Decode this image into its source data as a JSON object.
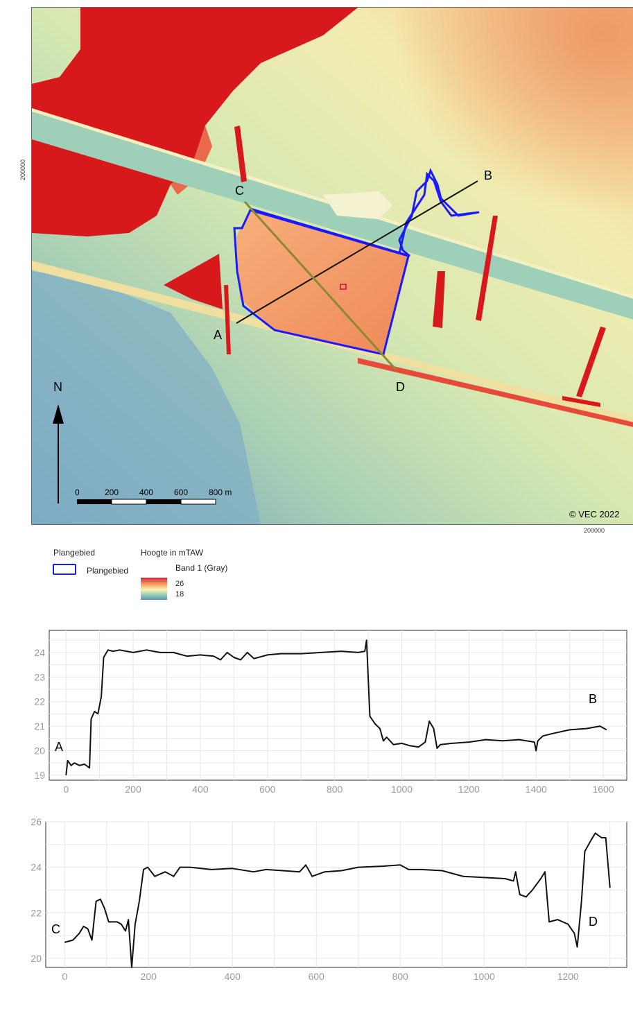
{
  "map": {
    "profile_labels": {
      "a": "A",
      "b": "B",
      "c": "C",
      "d": "D"
    },
    "north_label": "N",
    "scale_labels": [
      "0",
      "200",
      "400",
      "600",
      "800 m"
    ],
    "copyright": "© VEC 2022",
    "coord_y": "200000",
    "coord_x": "200000",
    "colors": {
      "study_area_outline": "#1a1aff",
      "profile_ab": "#111111",
      "profile_cd": "#8a8a30",
      "high": "#d7191c",
      "low": "#5e8fc2"
    }
  },
  "legend": {
    "study_area_title": "Plangebied",
    "study_area_item": "Plangebied",
    "height_title": "Hoogte in mTAW",
    "band_label": "Band 1 (Gray)",
    "max_value": "26",
    "min_value": "18"
  },
  "chart_data": [
    {
      "type": "line",
      "ylim": [
        18.8,
        24.9
      ],
      "xlim": [
        -50,
        1670
      ],
      "yticks": [
        19,
        20,
        21,
        22,
        23,
        24
      ],
      "xticks": [
        0,
        200,
        400,
        600,
        800,
        1000,
        1200,
        1400,
        1600
      ],
      "start_label": "A",
      "end_label": "B",
      "grid": true,
      "points": [
        [
          0,
          19.0
        ],
        [
          5,
          19.6
        ],
        [
          15,
          19.4
        ],
        [
          25,
          19.5
        ],
        [
          40,
          19.4
        ],
        [
          55,
          19.45
        ],
        [
          70,
          19.3
        ],
        [
          75,
          21.3
        ],
        [
          85,
          21.6
        ],
        [
          95,
          21.5
        ],
        [
          105,
          22.2
        ],
        [
          112,
          23.8
        ],
        [
          125,
          24.1
        ],
        [
          140,
          24.05
        ],
        [
          160,
          24.1
        ],
        [
          200,
          24.0
        ],
        [
          240,
          24.1
        ],
        [
          280,
          24.0
        ],
        [
          320,
          24.0
        ],
        [
          360,
          23.85
        ],
        [
          400,
          23.9
        ],
        [
          440,
          23.85
        ],
        [
          460,
          23.7
        ],
        [
          480,
          24.0
        ],
        [
          500,
          23.8
        ],
        [
          520,
          23.7
        ],
        [
          540,
          24.0
        ],
        [
          560,
          23.75
        ],
        [
          600,
          23.9
        ],
        [
          640,
          23.95
        ],
        [
          700,
          23.95
        ],
        [
          760,
          24.0
        ],
        [
          820,
          24.05
        ],
        [
          870,
          24.0
        ],
        [
          890,
          24.05
        ],
        [
          895,
          24.5
        ],
        [
          905,
          21.4
        ],
        [
          920,
          21.1
        ],
        [
          935,
          20.9
        ],
        [
          945,
          20.4
        ],
        [
          955,
          20.55
        ],
        [
          975,
          20.25
        ],
        [
          1000,
          20.3
        ],
        [
          1025,
          20.2
        ],
        [
          1050,
          20.15
        ],
        [
          1070,
          20.35
        ],
        [
          1082,
          21.2
        ],
        [
          1095,
          20.9
        ],
        [
          1105,
          20.1
        ],
        [
          1115,
          20.25
        ],
        [
          1150,
          20.3
        ],
        [
          1200,
          20.35
        ],
        [
          1250,
          20.45
        ],
        [
          1300,
          20.4
        ],
        [
          1350,
          20.45
        ],
        [
          1395,
          20.35
        ],
        [
          1400,
          20.0
        ],
        [
          1405,
          20.4
        ],
        [
          1420,
          20.6
        ],
        [
          1450,
          20.7
        ],
        [
          1500,
          20.85
        ],
        [
          1550,
          20.9
        ],
        [
          1590,
          21.0
        ],
        [
          1610,
          20.85
        ]
      ]
    },
    {
      "type": "line",
      "ylim": [
        19.6,
        26.0
      ],
      "xlim": [
        -45,
        1340
      ],
      "yticks": [
        20,
        22,
        24,
        26
      ],
      "xticks": [
        0,
        200,
        400,
        600,
        800,
        1000,
        1200
      ],
      "start_label": "C",
      "end_label": "D",
      "grid": true,
      "points": [
        [
          0,
          20.7
        ],
        [
          20,
          20.8
        ],
        [
          35,
          21.1
        ],
        [
          45,
          21.4
        ],
        [
          55,
          21.3
        ],
        [
          65,
          20.8
        ],
        [
          75,
          22.5
        ],
        [
          85,
          22.6
        ],
        [
          95,
          22.2
        ],
        [
          105,
          21.6
        ],
        [
          125,
          21.6
        ],
        [
          135,
          21.5
        ],
        [
          145,
          21.2
        ],
        [
          152,
          21.7
        ],
        [
          160,
          19.6
        ],
        [
          168,
          21.5
        ],
        [
          178,
          22.5
        ],
        [
          188,
          23.9
        ],
        [
          198,
          24.0
        ],
        [
          215,
          23.6
        ],
        [
          240,
          23.8
        ],
        [
          260,
          23.6
        ],
        [
          275,
          24.0
        ],
        [
          300,
          24.0
        ],
        [
          350,
          23.9
        ],
        [
          400,
          23.95
        ],
        [
          450,
          23.8
        ],
        [
          480,
          23.9
        ],
        [
          520,
          23.85
        ],
        [
          560,
          23.8
        ],
        [
          575,
          24.1
        ],
        [
          590,
          23.6
        ],
        [
          620,
          23.8
        ],
        [
          660,
          23.85
        ],
        [
          700,
          24.0
        ],
        [
          760,
          24.05
        ],
        [
          800,
          24.1
        ],
        [
          820,
          23.9
        ],
        [
          850,
          23.9
        ],
        [
          900,
          23.85
        ],
        [
          930,
          23.7
        ],
        [
          950,
          23.6
        ],
        [
          1000,
          23.55
        ],
        [
          1050,
          23.5
        ],
        [
          1070,
          23.4
        ],
        [
          1075,
          23.8
        ],
        [
          1085,
          22.8
        ],
        [
          1100,
          22.7
        ],
        [
          1115,
          23.0
        ],
        [
          1135,
          23.5
        ],
        [
          1145,
          23.8
        ],
        [
          1155,
          21.6
        ],
        [
          1175,
          21.7
        ],
        [
          1200,
          21.5
        ],
        [
          1215,
          21.1
        ],
        [
          1222,
          20.5
        ],
        [
          1232,
          22.5
        ],
        [
          1240,
          24.7
        ],
        [
          1255,
          25.2
        ],
        [
          1265,
          25.5
        ],
        [
          1280,
          25.3
        ],
        [
          1290,
          25.3
        ],
        [
          1300,
          23.1
        ]
      ]
    }
  ]
}
